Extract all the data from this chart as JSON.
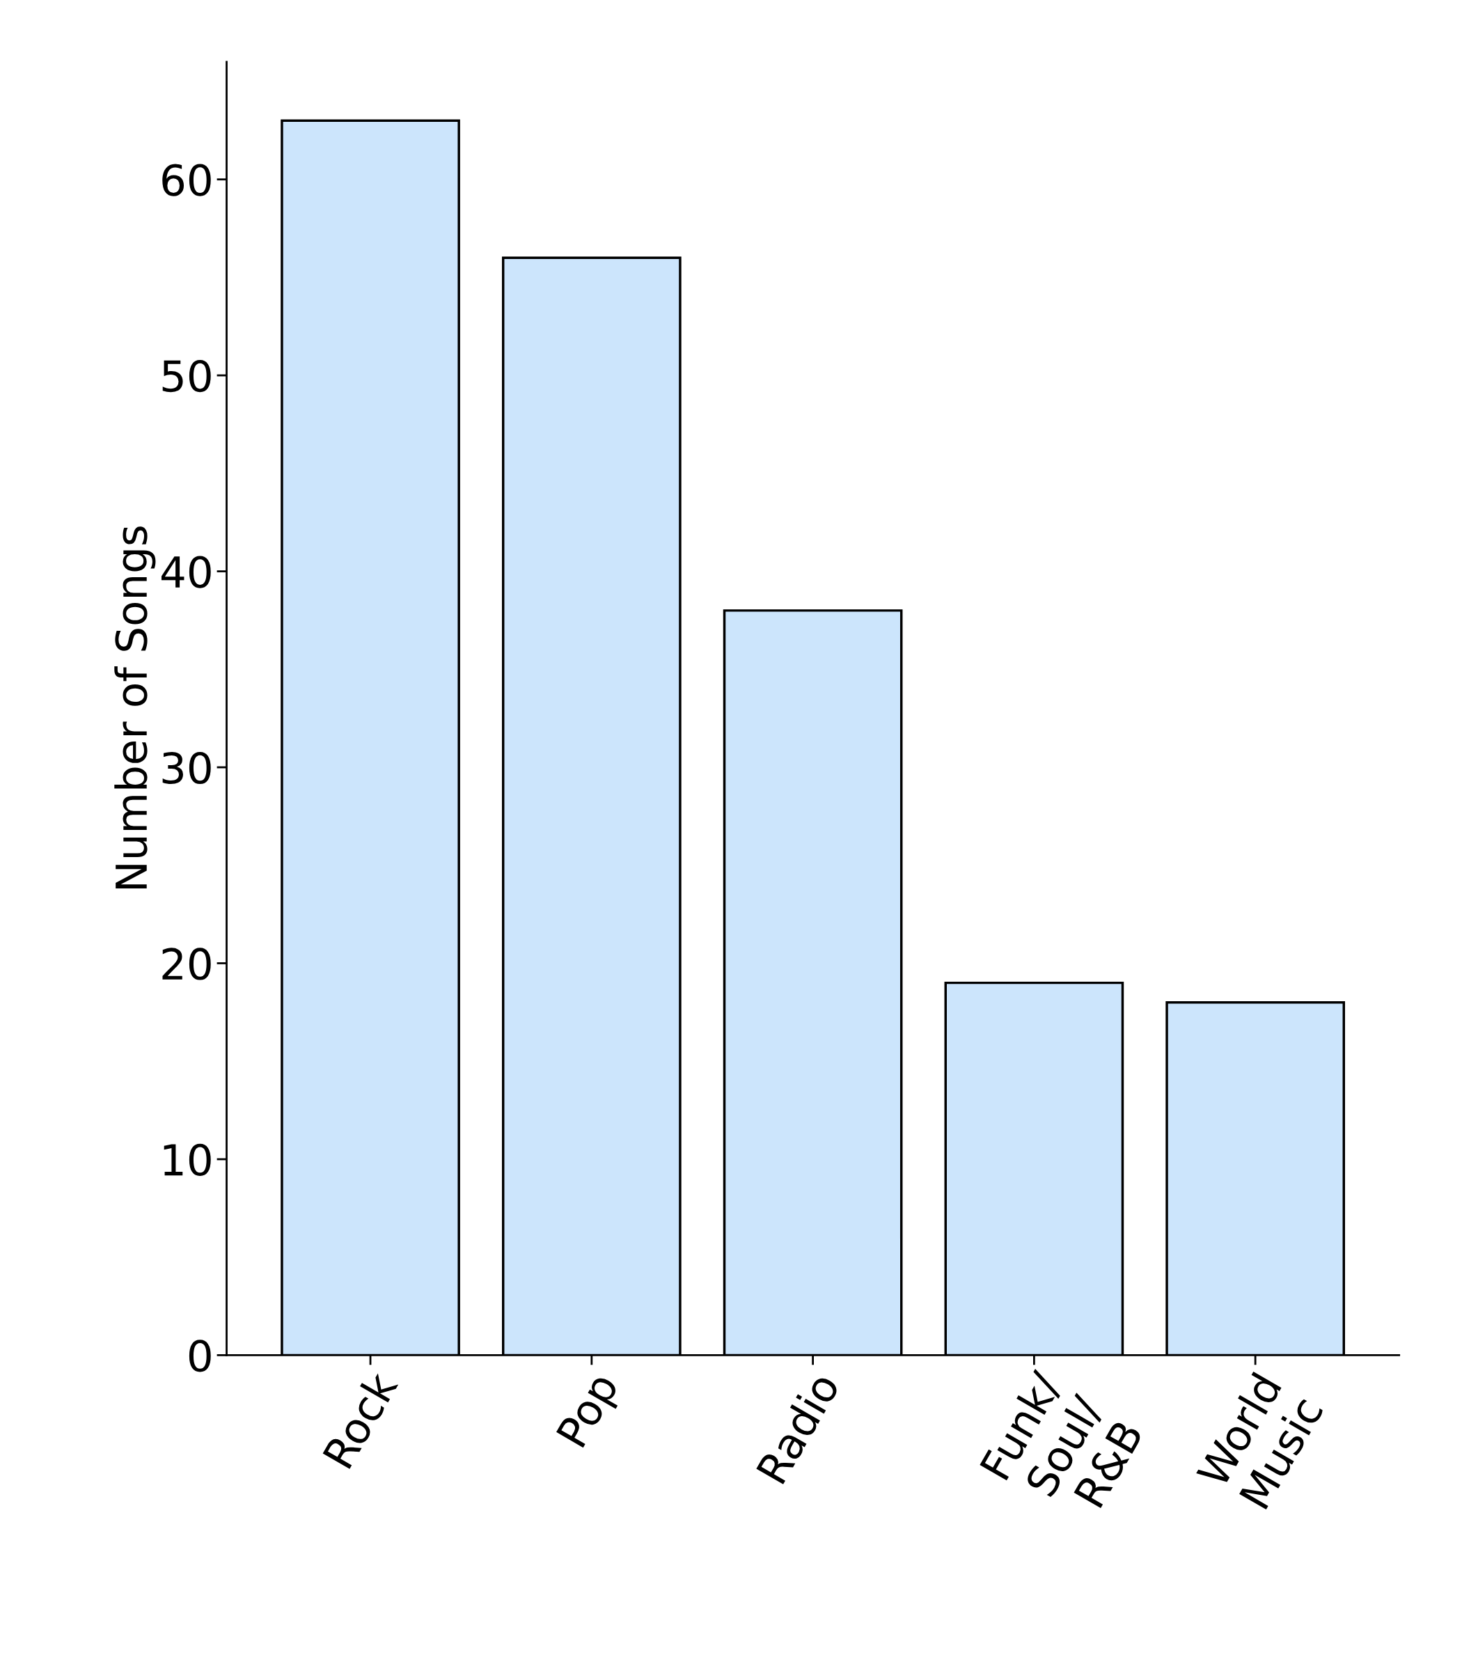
{
  "chart_data": {
    "type": "bar",
    "ylabel": "Number of Songs",
    "categories": [
      "Rock",
      "Pop",
      "Radio",
      "Funk/\nSoul/\nR&B",
      "World\nMusic"
    ],
    "values": [
      63,
      56,
      38,
      19,
      18
    ],
    "color": "#cce5fc",
    "ylim": [
      0,
      66
    ],
    "yticks": [
      0,
      10,
      20,
      30,
      40,
      50,
      60
    ],
    "grid": false
  }
}
